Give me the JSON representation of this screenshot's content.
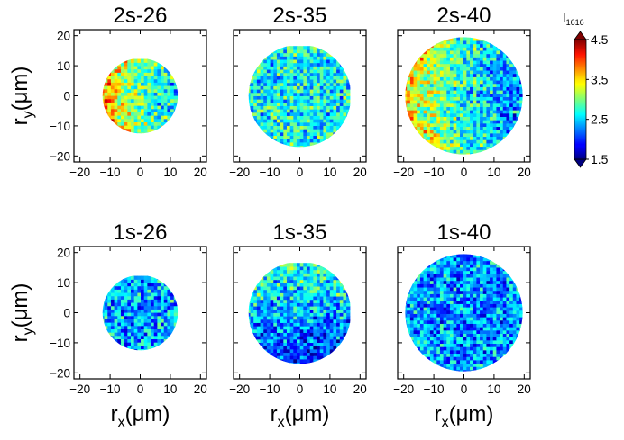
{
  "chart_data": {
    "type": "heatmap",
    "colormap": "jet",
    "xlabel_main": "r",
    "xlabel_sub": "x",
    "xlabel_unit": "(μm)",
    "ylabel_main": "r",
    "ylabel_sub": "y",
    "ylabel_unit": "(μm)",
    "xlim": [
      -22,
      22
    ],
    "ylim": [
      -22,
      22
    ],
    "x_ticks": [
      -20,
      -10,
      0,
      10,
      20
    ],
    "y_ticks": [
      -20,
      -10,
      0,
      10,
      20
    ],
    "x_tick_labels": [
      "−20",
      "−10",
      "0",
      "10",
      "20"
    ],
    "y_tick_labels": [
      "−20",
      "−10",
      "0",
      "10",
      "20"
    ],
    "colorbar": {
      "label_main": "I",
      "label_sub": "1616",
      "min": 1.5,
      "max": 4.5,
      "ticks": [
        1.5,
        2.5,
        3.5,
        4.5
      ],
      "tick_labels": [
        "1.5",
        "2.5",
        "3.5",
        "4.5"
      ],
      "extend": "both"
    },
    "panels": [
      {
        "title": "2s-26",
        "radius": 12.5,
        "mean": 2.95,
        "gradient_x": -0.045,
        "gradient_y": 0.0,
        "edge_boost": 0.8,
        "seed": 11
      },
      {
        "title": "2s-35",
        "radius": 17.0,
        "mean": 2.62,
        "gradient_x": 0.0,
        "gradient_y": 0.0,
        "edge_boost": 0.15,
        "seed": 23
      },
      {
        "title": "2s-40",
        "radius": 19.5,
        "mean": 2.75,
        "gradient_x": -0.032,
        "gradient_y": 0.0,
        "edge_boost": 0.6,
        "seed": 37
      },
      {
        "title": "1s-26",
        "radius": 12.5,
        "mean": 2.35,
        "gradient_x": 0.0,
        "gradient_y": 0.0,
        "edge_boost": 0.55,
        "seed": 41
      },
      {
        "title": "1s-35",
        "radius": 17.0,
        "mean": 2.35,
        "gradient_x": 0.0,
        "gradient_y": 0.025,
        "edge_boost": 0.35,
        "seed": 53
      },
      {
        "title": "1s-40",
        "radius": 19.5,
        "mean": 2.3,
        "gradient_x": 0.0,
        "gradient_y": 0.0,
        "edge_boost": 0.2,
        "seed": 67
      }
    ]
  }
}
